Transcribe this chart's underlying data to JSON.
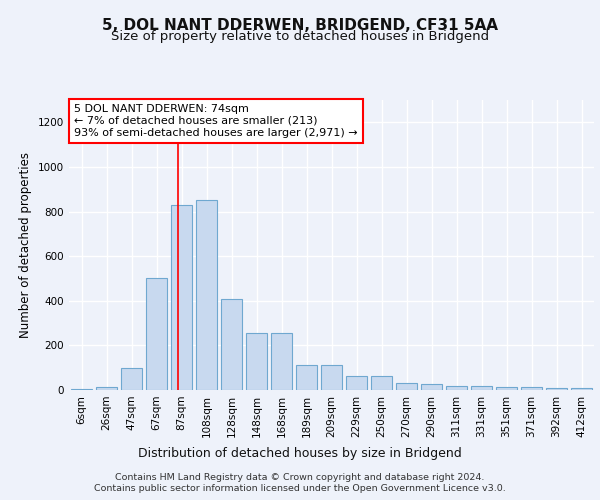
{
  "title": "5, DOL NANT DDERWEN, BRIDGEND, CF31 5AA",
  "subtitle": "Size of property relative to detached houses in Bridgend",
  "xlabel": "Distribution of detached houses by size in Bridgend",
  "ylabel": "Number of detached properties",
  "categories": [
    "6sqm",
    "26sqm",
    "47sqm",
    "67sqm",
    "87sqm",
    "108sqm",
    "128sqm",
    "148sqm",
    "168sqm",
    "189sqm",
    "209sqm",
    "229sqm",
    "250sqm",
    "270sqm",
    "290sqm",
    "311sqm",
    "331sqm",
    "351sqm",
    "371sqm",
    "392sqm",
    "412sqm"
  ],
  "values": [
    5,
    13,
    100,
    500,
    830,
    850,
    410,
    255,
    255,
    110,
    110,
    65,
    65,
    30,
    25,
    18,
    18,
    12,
    12,
    8,
    8
  ],
  "bar_color": "#c8d9ef",
  "bar_edge_color": "#6fa8d0",
  "vline_x": 3.85,
  "vline_color": "red",
  "ylim": [
    0,
    1300
  ],
  "yticks": [
    0,
    200,
    400,
    600,
    800,
    1000,
    1200
  ],
  "annotation_title": "5 DOL NANT DDERWEN: 74sqm",
  "annotation_line1": "← 7% of detached houses are smaller (213)",
  "annotation_line2": "93% of semi-detached houses are larger (2,971) →",
  "footer_line1": "Contains HM Land Registry data © Crown copyright and database right 2024.",
  "footer_line2": "Contains public sector information licensed under the Open Government Licence v3.0.",
  "background_color": "#eef2fa",
  "plot_background": "#eef2fa",
  "grid_color": "#ffffff",
  "title_fontsize": 11,
  "subtitle_fontsize": 9.5,
  "ylabel_fontsize": 8.5,
  "xlabel_fontsize": 9,
  "tick_fontsize": 7.5,
  "footer_fontsize": 6.8,
  "annotation_fontsize": 8
}
